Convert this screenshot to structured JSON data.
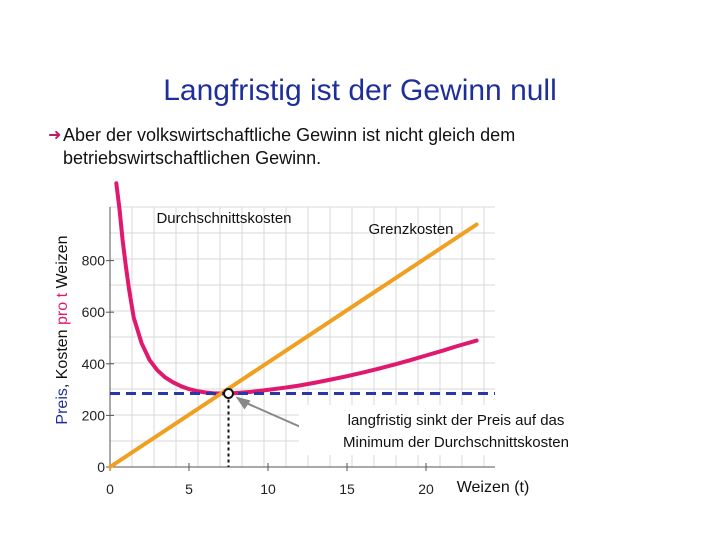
{
  "title": "Langfristig ist der Gewinn null",
  "bullet": {
    "icon": "arrow-right-icon",
    "line1": "Aber der volkswirtschaftliche Gewinn ist nicht gleich dem",
    "line2": "betriebswirtschaftlichen Gewinn."
  },
  "colors": {
    "title": "#1f2f9a",
    "average_cost": "#e0186e",
    "marginal_cost": "#f0a020",
    "price_line": "#2a37a8",
    "grid": "#d8d8d8"
  },
  "chart_data": {
    "type": "line",
    "title": "",
    "xlabel": "Weizen (t)",
    "ylabel": "Preis, Kosten pro t Weizen",
    "ylabel_parts": [
      "Preis",
      ", Kosten ",
      "pro t",
      " Weizen"
    ],
    "xlim": [
      0,
      20
    ],
    "ylim": [
      0,
      1000
    ],
    "x_ticks": [
      0,
      5,
      10,
      15,
      20
    ],
    "y_ticks": [
      0,
      200,
      400,
      600,
      800
    ],
    "grid": true,
    "series": [
      {
        "name": "Durchschnittskosten",
        "x": [
          0.4,
          0.6,
          0.8,
          1,
          1.2,
          1.5,
          2,
          2.5,
          3,
          3.5,
          4,
          4.5,
          5,
          5.5,
          6,
          6.5,
          7,
          7.5,
          8,
          9,
          10,
          11,
          12,
          13,
          14,
          15,
          16,
          17,
          18,
          19,
          20,
          21,
          22,
          23.2
        ],
        "y": [
          1100,
          1000,
          880,
          780,
          690,
          580,
          480,
          415,
          375,
          347,
          328,
          313,
          302,
          294,
          289,
          286,
          285,
          285,
          287,
          292,
          299,
          307,
          316,
          327,
          339,
          352,
          366,
          381,
          397,
          414,
          432,
          450,
          469,
          490
        ]
      },
      {
        "name": "Grenzkosten",
        "x": [
          0,
          23.2
        ],
        "y": [
          0,
          940
        ]
      }
    ],
    "price": 285,
    "optimum": {
      "x": 7.5,
      "y": 285
    },
    "annotation_line1": "langfristig sinkt der Preis auf das",
    "annotation_line2": "Minimum der Durchschnittskosten"
  }
}
